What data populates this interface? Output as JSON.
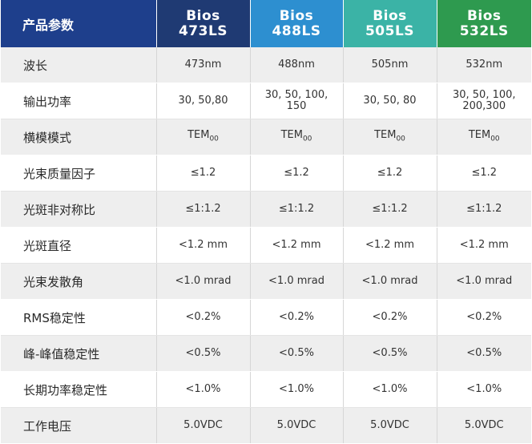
{
  "header": {
    "param_label": "产品参数",
    "products": [
      {
        "line1": "Bios",
        "line2": "473LS",
        "color": "#1f3a73"
      },
      {
        "line1": "Bios",
        "line2": "488LS",
        "color": "#2d8fd0"
      },
      {
        "line1": "Bios",
        "line2": "505LS",
        "color": "#3bb3a6"
      },
      {
        "line1": "Bios",
        "line2": "532LS",
        "color": "#2e9a4f"
      }
    ]
  },
  "rows": [
    {
      "label": "波长",
      "values": [
        "473nm",
        "488nm",
        "505nm",
        "532nm"
      ]
    },
    {
      "label": "输出功率",
      "values": [
        "30, 50,80",
        "30, 50, 100,\n150",
        "30, 50, 80",
        "30, 50, 100,\n200,300"
      ]
    },
    {
      "label": "横模模式",
      "values": [
        "TEM00",
        "TEM00",
        "TEM00",
        "TEM00"
      ]
    },
    {
      "label": "光束质量因子",
      "values": [
        "≤1.2",
        "≤1.2",
        "≤1.2",
        "≤1.2"
      ]
    },
    {
      "label": "光斑非对称比",
      "values": [
        "≤1:1.2",
        "≤1:1.2",
        "≤1:1.2",
        "≤1:1.2"
      ]
    },
    {
      "label": "光斑直径",
      "values": [
        "<1.2 mm",
        "<1.2 mm",
        "<1.2 mm",
        "<1.2 mm"
      ]
    },
    {
      "label": "光束发散角",
      "values": [
        "<1.0 mrad",
        "<1.0 mrad",
        "<1.0 mrad",
        "<1.0 mrad"
      ]
    },
    {
      "label": "RMS稳定性",
      "values": [
        "<0.2%",
        "<0.2%",
        "<0.2%",
        "<0.2%"
      ]
    },
    {
      "label": "峰-峰值稳定性",
      "values": [
        "<0.5%",
        "<0.5%",
        "<0.5%",
        "<0.5%"
      ]
    },
    {
      "label": "长期功率稳定性",
      "values": [
        "<1.0%",
        "<1.0%",
        "<1.0%",
        "<1.0%"
      ]
    },
    {
      "label": "工作电压",
      "values": [
        "5.0VDC",
        "5.0VDC",
        "5.0VDC",
        "5.0VDC"
      ]
    }
  ]
}
